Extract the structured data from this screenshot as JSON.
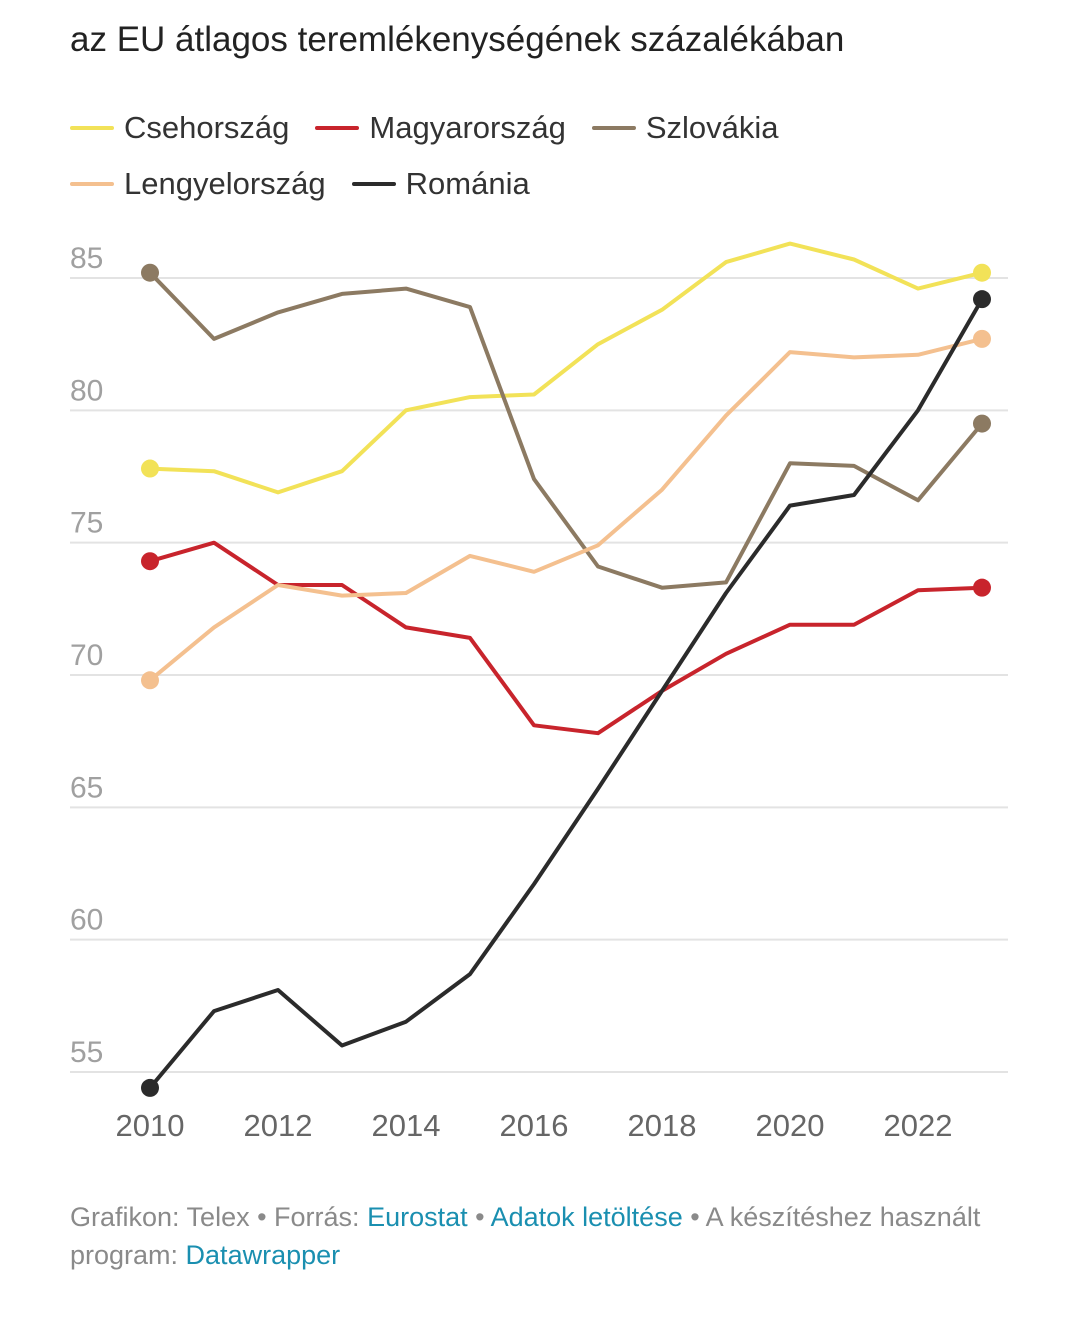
{
  "chart_data": {
    "type": "line",
    "title": "az EU átlagos teremlékenységének százalékában",
    "x": [
      2010,
      2011,
      2012,
      2013,
      2014,
      2015,
      2016,
      2017,
      2018,
      2019,
      2020,
      2021,
      2022,
      2023
    ],
    "x_ticks": [
      "2010",
      "2012",
      "2014",
      "2016",
      "2018",
      "2020",
      "2022"
    ],
    "y_ticks": [
      "55",
      "60",
      "65",
      "70",
      "75",
      "80",
      "85"
    ],
    "ylim": [
      54,
      86.5
    ],
    "grid": true,
    "legend_placement": "top",
    "legend_rows": [
      [
        "Csehország",
        "Magyarország",
        "Szlovákia"
      ],
      [
        "Lengyelország",
        "Románia"
      ]
    ],
    "series": [
      {
        "name": "Csehország",
        "color": "#f2e258",
        "values": [
          77.8,
          77.7,
          76.9,
          77.7,
          80.0,
          80.5,
          80.6,
          82.5,
          83.8,
          85.6,
          86.3,
          85.7,
          84.6,
          85.2
        ]
      },
      {
        "name": "Magyarország",
        "color": "#c8242c",
        "values": [
          74.3,
          75.0,
          73.4,
          73.4,
          71.8,
          71.4,
          68.1,
          67.8,
          69.4,
          70.8,
          71.9,
          71.9,
          73.2,
          73.3
        ]
      },
      {
        "name": "Szlovákia",
        "color": "#8c7a62",
        "values": [
          85.2,
          82.7,
          83.7,
          84.4,
          84.6,
          83.9,
          77.4,
          74.1,
          73.3,
          73.5,
          78.0,
          77.9,
          76.6,
          79.5
        ]
      },
      {
        "name": "Lengyelország",
        "color": "#f4c08f",
        "values": [
          69.8,
          71.8,
          73.4,
          73.0,
          73.1,
          74.5,
          73.9,
          74.9,
          77.0,
          79.8,
          82.2,
          82.0,
          82.1,
          82.7
        ]
      },
      {
        "name": "Románia",
        "color": "#2b2b2b",
        "values": [
          54.4,
          57.3,
          58.1,
          56.0,
          56.9,
          58.7,
          62.1,
          65.7,
          69.4,
          73.1,
          76.4,
          76.8,
          80.0,
          84.2
        ]
      }
    ]
  },
  "footer": {
    "credit": "Grafikon: Telex • Forrás: ",
    "source_link": "Eurostat",
    "sep": " • ",
    "download_link": "Adatok letöltése",
    "tool_text": " • A készítéshez használt program: ",
    "tool_link": "Datawrapper"
  }
}
